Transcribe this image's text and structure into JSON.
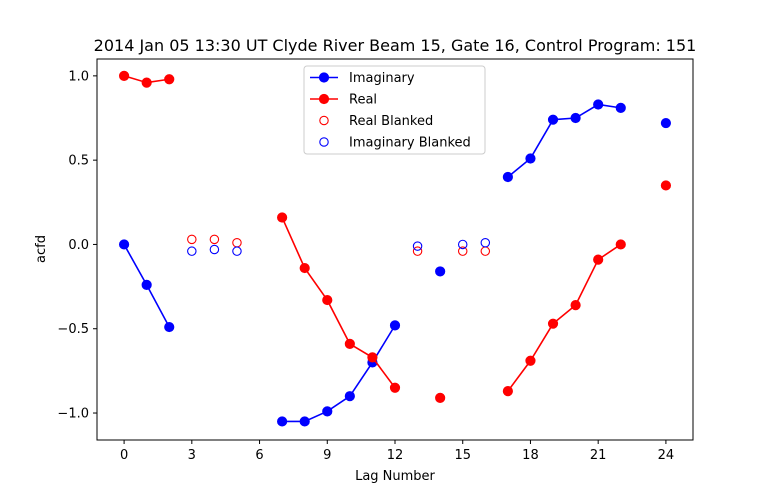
{
  "chart_data": {
    "type": "line",
    "title": "2014 Jan 05 13:30 UT Clyde River Beam 15, Gate 16, Control Program: 151",
    "xlabel": "Lag Number",
    "ylabel": "acfd",
    "xlim": [
      -1.2,
      25.2
    ],
    "ylim": [
      -1.16,
      1.1
    ],
    "x_ticks": [
      0,
      3,
      6,
      9,
      12,
      15,
      18,
      21,
      24
    ],
    "y_ticks": [
      -1.0,
      -0.5,
      0.0,
      0.5,
      1.0
    ],
    "x_tick_labels": [
      "0",
      "3",
      "6",
      "9",
      "12",
      "15",
      "18",
      "21",
      "24"
    ],
    "y_tick_labels": [
      "−1.0",
      "−0.5",
      "0.0",
      "0.5",
      "1.0"
    ],
    "grid": false,
    "legend_position": "top-center",
    "series": [
      {
        "name": "Imaginary",
        "style": "line-filled",
        "color": "#0000ff",
        "segments": [
          [
            [
              0,
              0.0
            ],
            [
              1,
              -0.24
            ],
            [
              2,
              -0.49
            ]
          ],
          [
            [
              7,
              -1.05
            ],
            [
              8,
              -1.05
            ],
            [
              9,
              -0.99
            ],
            [
              10,
              -0.9
            ],
            [
              11,
              -0.7
            ],
            [
              12,
              -0.48
            ]
          ],
          [
            [
              14,
              -0.16
            ]
          ],
          [
            [
              17,
              0.4
            ],
            [
              18,
              0.51
            ],
            [
              19,
              0.74
            ],
            [
              20,
              0.75
            ],
            [
              21,
              0.83
            ],
            [
              22,
              0.81
            ]
          ],
          [
            [
              24,
              0.72
            ]
          ]
        ]
      },
      {
        "name": "Real",
        "style": "line-filled",
        "color": "#ff0000",
        "segments": [
          [
            [
              0,
              1.0
            ],
            [
              1,
              0.96
            ],
            [
              2,
              0.98
            ]
          ],
          [
            [
              7,
              0.16
            ],
            [
              8,
              -0.14
            ],
            [
              9,
              -0.33
            ],
            [
              10,
              -0.59
            ],
            [
              11,
              -0.67
            ],
            [
              12,
              -0.85
            ]
          ],
          [
            [
              14,
              -0.91
            ]
          ],
          [
            [
              17,
              -0.87
            ],
            [
              18,
              -0.69
            ],
            [
              19,
              -0.47
            ],
            [
              20,
              -0.36
            ],
            [
              21,
              -0.09
            ],
            [
              22,
              0.0
            ]
          ],
          [
            [
              24,
              0.35
            ]
          ]
        ]
      },
      {
        "name": "Real Blanked",
        "style": "hollow",
        "color": "#ff0000",
        "points": [
          [
            3,
            0.03
          ],
          [
            4,
            0.03
          ],
          [
            5,
            0.01
          ],
          [
            13,
            -0.04
          ],
          [
            15,
            -0.04
          ],
          [
            16,
            -0.04
          ]
        ]
      },
      {
        "name": "Imaginary Blanked",
        "style": "hollow",
        "color": "#0000ff",
        "points": [
          [
            3,
            -0.04
          ],
          [
            4,
            -0.03
          ],
          [
            5,
            -0.04
          ],
          [
            13,
            -0.01
          ],
          [
            15,
            0.0
          ],
          [
            16,
            0.01
          ]
        ]
      }
    ]
  }
}
